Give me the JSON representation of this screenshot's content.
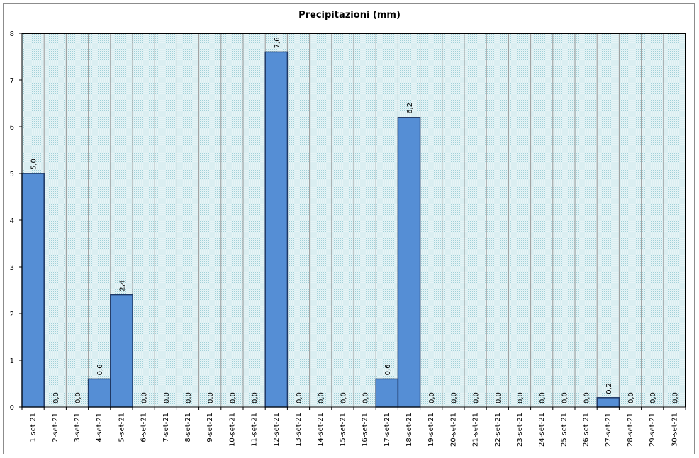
{
  "chart_data": {
    "type": "bar",
    "title": "Precipitazioni (mm)",
    "xlabel": "",
    "ylabel": "",
    "ylim": [
      0,
      8
    ],
    "yticks": [
      "0",
      "1",
      "2",
      "3",
      "4",
      "5",
      "6",
      "7",
      "8"
    ],
    "grid": true,
    "bar_color": "#558ed5",
    "plot_background": "#d9eef2",
    "categories": [
      "1-set-21",
      "2-set-21",
      "3-set-21",
      "4-set-21",
      "5-set-21",
      "6-set-21",
      "7-set-21",
      "8-set-21",
      "9-set-21",
      "10-set-21",
      "11-set-21",
      "12-set-21",
      "13-set-21",
      "14-set-21",
      "15-set-21",
      "16-set-21",
      "17-set-21",
      "18-set-21",
      "19-set-21",
      "20-set-21",
      "21-set-21",
      "22-set-21",
      "23-set-21",
      "24-set-21",
      "25-set-21",
      "26-set-21",
      "27-set-21",
      "28-set-21",
      "29-set-21",
      "30-set-21"
    ],
    "values": [
      5.0,
      0.0,
      0.0,
      0.6,
      2.4,
      0.0,
      0.0,
      0.0,
      0.0,
      0.0,
      0.0,
      7.6,
      0.0,
      0.0,
      0.0,
      0.0,
      0.6,
      6.2,
      0.0,
      0.0,
      0.0,
      0.0,
      0.0,
      0.0,
      0.0,
      0.0,
      0.2,
      0.0,
      0.0,
      0.0
    ],
    "value_labels": [
      "5,0",
      "0,0",
      "0,0",
      "0,6",
      "2,4",
      "0,0",
      "0,0",
      "0,0",
      "0,0",
      "0,0",
      "0,0",
      "7,6",
      "0,0",
      "0,0",
      "0,0",
      "0,0",
      "0,6",
      "6,2",
      "0,0",
      "0,0",
      "0,0",
      "0,0",
      "0,0",
      "0,0",
      "0,0",
      "0,0",
      "0,2",
      "0,0",
      "0,0",
      "0,0"
    ]
  }
}
